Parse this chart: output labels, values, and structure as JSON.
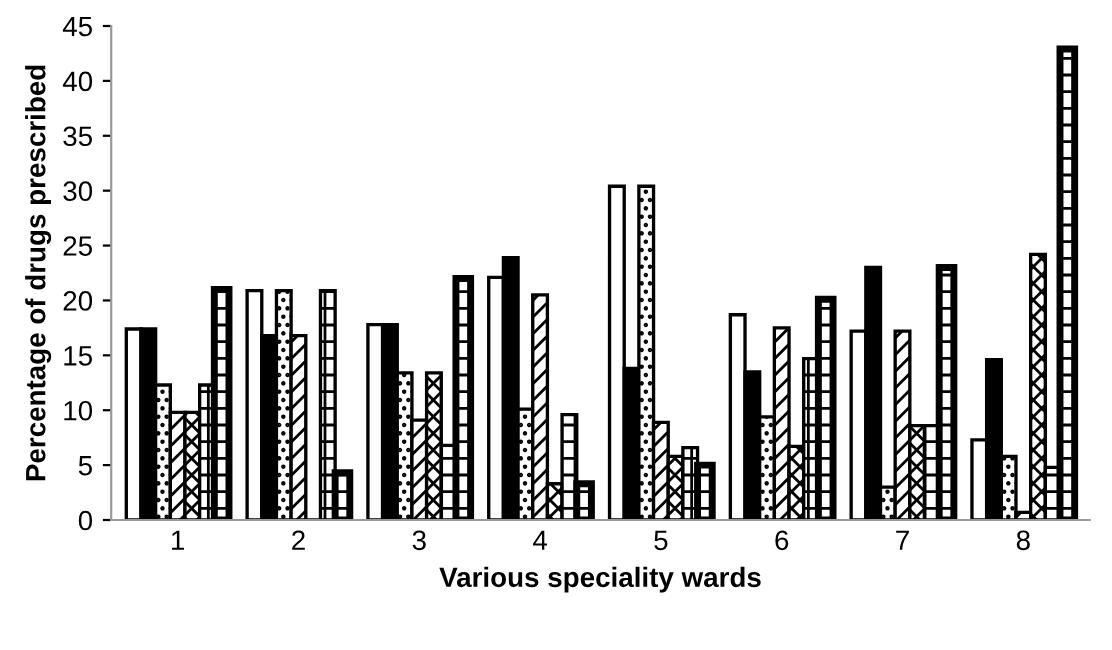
{
  "chart_data": {
    "type": "bar",
    "xlabel": "Various speciality wards",
    "ylabel": "Percentage of drugs prescribed",
    "categories": [
      "1",
      "2",
      "3",
      "4",
      "5",
      "6",
      "7",
      "8"
    ],
    "series": [
      {
        "color": "#ffffff",
        "values": [
          17.4,
          20.9,
          17.8,
          22.1,
          30.4,
          18.7,
          17.2,
          7.3
        ]
      },
      {
        "color": "#000000",
        "values": [
          17.4,
          16.8,
          17.8,
          23.9,
          13.8,
          13.5,
          23.0,
          14.6
        ]
      },
      {
        "color": "#000000",
        "values": [
          12.3,
          20.9,
          13.4,
          10.1,
          30.4,
          9.4,
          3.0,
          5.8
        ]
      },
      {
        "color": "#000000",
        "values": [
          9.8,
          16.8,
          9.1,
          20.5,
          8.9,
          17.5,
          17.2,
          0.7
        ]
      },
      {
        "color": "#000000",
        "values": [
          9.8,
          0,
          13.4,
          3.3,
          5.8,
          6.7,
          8.6,
          24.2
        ]
      },
      {
        "color": "#000000",
        "values": [
          12.3,
          20.9,
          6.8,
          9.6,
          6.6,
          14.7,
          8.6,
          4.8
        ]
      },
      {
        "color": "#000000",
        "values": [
          21.0,
          4.3,
          22.0,
          3.3,
          5.0,
          20.1,
          23.0,
          42.9
        ]
      }
    ],
    "ylim": [
      0,
      45
    ],
    "yticks": [
      0,
      5,
      10,
      15,
      20,
      25,
      30,
      35,
      40,
      45
    ],
    "grid": false,
    "legend": false
  }
}
